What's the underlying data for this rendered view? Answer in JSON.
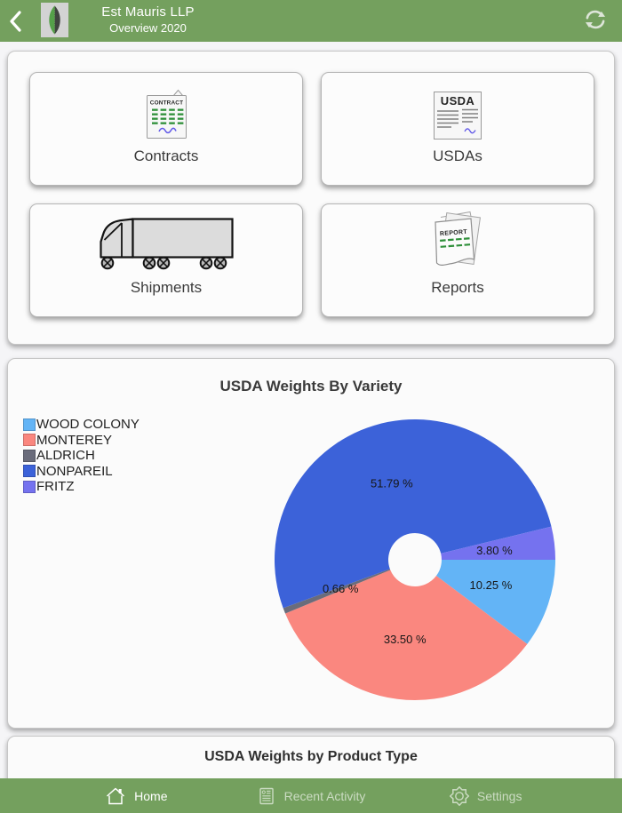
{
  "header": {
    "title": "Est Mauris LLP",
    "subtitle": "Overview 2020"
  },
  "tiles": [
    {
      "label": "Contracts",
      "icon": "contract-document-icon"
    },
    {
      "label": "USDAs",
      "icon": "usda-document-icon"
    },
    {
      "label": "Shipments",
      "icon": "truck-icon"
    },
    {
      "label": "Reports",
      "icon": "report-stack-icon"
    }
  ],
  "sections": {
    "product_type_title": "USDA Weights by Product Type"
  },
  "tab_bar": {
    "items": [
      {
        "label": "Home",
        "icon": "home-icon",
        "active": true
      },
      {
        "label": "Recent Activity",
        "icon": "recent-activity-icon",
        "active": false
      },
      {
        "label": "Settings",
        "icon": "settings-icon",
        "active": false
      }
    ]
  },
  "colors": {
    "app_green": "#74a05e",
    "card_background": "#fbfbfb"
  },
  "chart_data": {
    "type": "pie",
    "title": "USDA Weights By Variety",
    "donut": true,
    "hole_ratio": 0.19,
    "start_angle_deg": 0,
    "direction": "clockwise",
    "legend_position": "left",
    "value_unit": "%",
    "slices": [
      {
        "label": "WOOD COLONY",
        "value": 10.25,
        "display": "10.25 %",
        "color": "#63b4f6"
      },
      {
        "label": "MONTEREY",
        "value": 33.5,
        "display": "33.50 %",
        "color": "#fa877f"
      },
      {
        "label": "ALDRICH",
        "value": 0.66,
        "display": "0.66 %",
        "color": "#6a6c7b"
      },
      {
        "label": "NONPAREIL",
        "value": 51.79,
        "display": "51.79 %",
        "color": "#3c62d9"
      },
      {
        "label": "FRITZ",
        "value": 3.8,
        "display": "3.80 %",
        "color": "#7572ef"
      }
    ]
  }
}
